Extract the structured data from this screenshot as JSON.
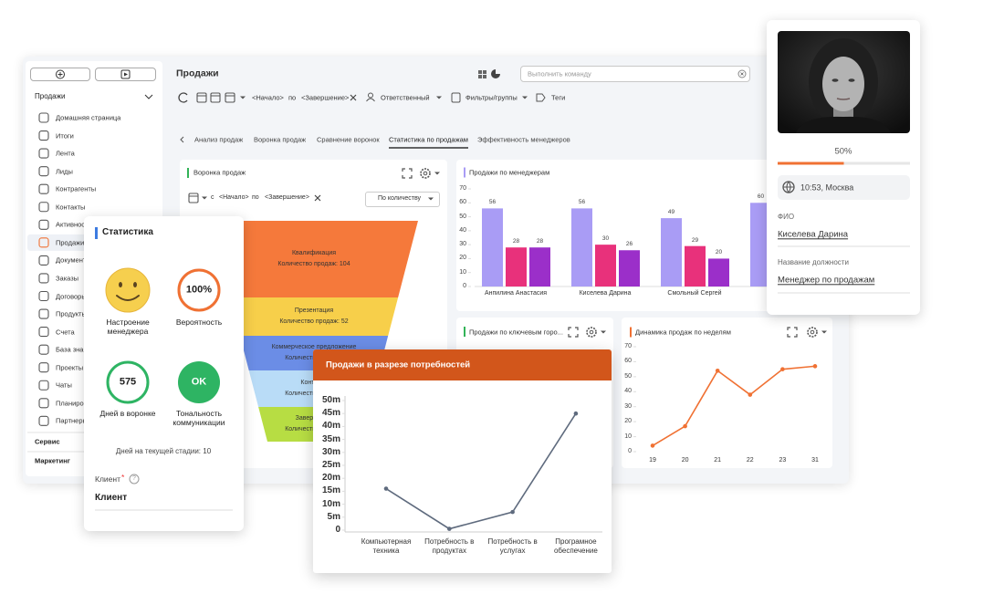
{
  "sidebar": {
    "section": "Продажи",
    "items": [
      "Домашняя страница",
      "Итоги",
      "Лента",
      "Лиды",
      "Контрагенты",
      "Контакты",
      "Активности",
      "Продажи",
      "Документы",
      "Заказы",
      "Договоры",
      "Продукты",
      "Счета",
      "База знаний",
      "Проекты",
      "Чаты",
      "Планирование",
      "Партнеры"
    ],
    "active": 7,
    "groups": [
      "Сервис",
      "Маркетинг"
    ]
  },
  "header": {
    "title": "Продажи",
    "search_placeholder": "Выполнить команду",
    "start": "<Начало>",
    "by": "по",
    "end": "<Завершение>",
    "responsible": "Ответственный",
    "filters": "Фильтры/группы",
    "tags": "Теги"
  },
  "tabs": {
    "items": [
      "Анализ продаж",
      "Воронка продаж",
      "Сравнение воронок",
      "Статистика по продажам",
      "Эффективность менеджеров"
    ],
    "active": 3
  },
  "funnel": {
    "title": "Воронка продаж",
    "from": "с",
    "start": "<Начало>",
    "by": "по",
    "end": "<Завершение>",
    "mode": "По количеству",
    "stages": [
      {
        "name": "Квалификация",
        "detail": "Количество продаж: 104",
        "color": "#f5793b"
      },
      {
        "name": "Презентация",
        "detail": "Количество продаж: 52",
        "color": "#f7cf4a"
      },
      {
        "name": "Коммерческое предложение",
        "detail": "Количество продаж",
        "color": "#6b8de6"
      },
      {
        "name": "Контракт",
        "detail": "Количество продаж",
        "color": "#b9dcf7"
      },
      {
        "name": "Завершение",
        "detail": "Количество продаж",
        "color": "#b7dd43"
      }
    ]
  },
  "city_card": {
    "title": "Продажи по ключевым горо..."
  },
  "chart_data": [
    {
      "type": "bar",
      "title": "Продажи по менеджерам",
      "categories": [
        "Анпилина Анастасия",
        "Киселева Дарина",
        "Смольный Сергей",
        null
      ],
      "series": [
        {
          "color": "#a99cf5",
          "values": [
            56,
            56,
            49,
            60
          ]
        },
        {
          "color": "#e8317b",
          "values": [
            28,
            30,
            29,
            null
          ]
        },
        {
          "color": "#9b2fc9",
          "values": [
            28,
            26,
            20,
            null
          ]
        }
      ],
      "ylim": [
        0,
        70
      ],
      "yticks": [
        0,
        10,
        20,
        30,
        40,
        50,
        60,
        70
      ],
      "show_values": true
    },
    {
      "type": "line",
      "title": "Динамика продаж по неделям",
      "categories": [
        "19",
        "20",
        "21",
        "22",
        "23",
        "31"
      ],
      "values": [
        4,
        17,
        54,
        38,
        55,
        57
      ],
      "color": "#f07133",
      "ylim": [
        0,
        70
      ],
      "yticks": [
        0,
        10,
        20,
        30,
        40,
        50,
        60,
        70
      ]
    },
    {
      "type": "line",
      "title": "Продажи в разрезе потребностей",
      "categories": [
        "Компьютерная техника",
        "Потребность в продуктах",
        "Потребность в услугах",
        "Програмное обеспечение"
      ],
      "values": [
        16,
        0.5,
        7,
        45
      ],
      "color": "#5f6b7e",
      "ylim": [
        0,
        50
      ],
      "yticks": [
        0,
        {
          "value": 5,
          "label": "5m"
        },
        {
          "value": 10,
          "label": "10m"
        },
        {
          "value": 15,
          "label": "15m"
        },
        {
          "value": 20,
          "label": "20m"
        },
        {
          "value": 25,
          "label": "25m"
        },
        {
          "value": 30,
          "label": "30m"
        },
        {
          "value": 35,
          "label": "35m"
        },
        {
          "value": 40,
          "label": "40m"
        },
        {
          "value": 45,
          "label": "45m"
        },
        {
          "value": 50,
          "label": "50m"
        }
      ]
    }
  ],
  "stats": {
    "title": "Статистика",
    "mood": "Настроение менеджера",
    "probability": {
      "value": 100,
      "label": "100%"
    },
    "probability_caption": "Вероятность",
    "days": 575,
    "days_caption": "Дней в воронке",
    "tone": "OK",
    "tone_caption": "Тональность коммуникации",
    "stage_days": "Дней на текущей стадии: 10",
    "client_label": "Клиент",
    "required": "*",
    "help": "?",
    "client": "Клиент"
  },
  "profile": {
    "progress": {
      "value": 50,
      "label": "50%"
    },
    "location": "10:53, Москва",
    "name_label": "ФИО",
    "name": "Киселева Дарина",
    "position_label": "Название должности",
    "position": "Менеджер по продажам"
  }
}
